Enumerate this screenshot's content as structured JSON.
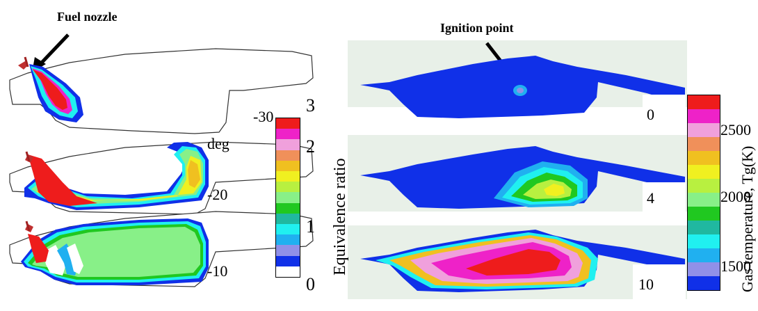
{
  "left_panel": {
    "title": "Fuel nozzle",
    "rows": [
      {
        "label": "-30"
      },
      {
        "label": "-20"
      },
      {
        "label": "-10"
      }
    ],
    "unit": "deg",
    "colorbar": {
      "ticks": [
        "3",
        "2",
        "1",
        "0"
      ],
      "colors": [
        "#ee1c1c",
        "#ee22c8",
        "#f0a0dc",
        "#f0905a",
        "#f0c020",
        "#f0f020",
        "#b8f040",
        "#88f088",
        "#20c820",
        "#20b8a0",
        "#20f0f0",
        "#20b0f0",
        "#9090e8",
        "#1030e8",
        "#ffffff"
      ]
    },
    "axis_label": "Equivalence ratio"
  },
  "right_panel": {
    "title": "Ignition point",
    "rows": [
      {
        "label": "0"
      },
      {
        "label": "4"
      },
      {
        "label": "10"
      }
    ],
    "colorbar": {
      "ticks": [
        "2500",
        "2000",
        "1500"
      ],
      "colors": [
        "#ee1c1c",
        "#ee22c8",
        "#f0a0dc",
        "#f0905a",
        "#f0c020",
        "#f0f020",
        "#b8f040",
        "#88f088",
        "#20c820",
        "#20b8a0",
        "#20f0f0",
        "#20b0f0",
        "#9090e8",
        "#1030e8"
      ]
    },
    "axis_label": "Gas temperature, Tg(K)"
  }
}
